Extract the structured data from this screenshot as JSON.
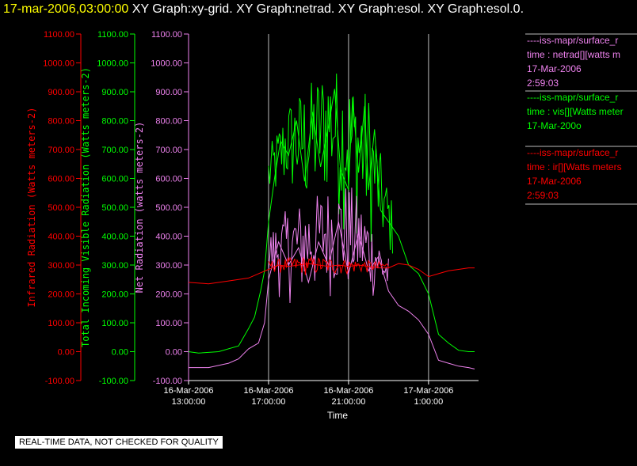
{
  "title": {
    "timestamp": "17-mar-2006,03:00:00",
    "labels": [
      "XY Graph:xy-grid.",
      "XY Graph:netrad.",
      "XY Graph:esol.",
      "XY Graph:esol.0."
    ]
  },
  "notice": "REAL-TIME DATA, NOT CHECKED FOR QUALITY",
  "colors": {
    "ir": "#ff0000",
    "vis": "#00ff00",
    "net": "#ee82ee",
    "grid": "#ffffff",
    "background": "#000000"
  },
  "legend": [
    {
      "source": "----iss-mapr/surface_r",
      "field": "time : netrad[][watts m",
      "date": "17-Mar-2006",
      "time": "2:59:03",
      "color": "#ee82ee"
    },
    {
      "source": "----iss-mapr/surface_r",
      "field": "time : vis[][Watts meter",
      "date": "17-Mar-200o",
      "time": "",
      "color": "#00ff00"
    },
    {
      "source": "----iss-mapr/surface_r",
      "field": "time : ir[][Watts meters",
      "date": "17-Mar-2006",
      "time": "2:59:03",
      "color": "#ff0000"
    }
  ],
  "chart_data": {
    "type": "line",
    "xlabel": "Time",
    "x_ticks": [
      {
        "date": "16-Mar-2006",
        "time": "13:00:00",
        "hour": 13
      },
      {
        "date": "16-Mar-2006",
        "time": "17:00:00",
        "hour": 17
      },
      {
        "date": "16-Mar-2006",
        "time": "21:00:00",
        "hour": 21
      },
      {
        "date": "17-Mar-2006",
        "time": "1:00:00",
        "hour": 25
      }
    ],
    "xlim": [
      13,
      27.5
    ],
    "ylim": [
      -100,
      1100
    ],
    "y_ticks": [
      "-100.00",
      "0.00",
      "100.00",
      "200.00",
      "300.00",
      "400.00",
      "500.00",
      "600.00",
      "700.00",
      "800.00",
      "900.00",
      "1000.00",
      "1100.00"
    ],
    "axes": [
      {
        "label": "Infrared Radiation (Watts meters-2)",
        "color": "#ff0000"
      },
      {
        "label": "Total Incoming Visible Radiation (Watts meters-2)",
        "color": "#00ff00"
      },
      {
        "label": "Net Radiation (watts meters-2)",
        "color": "#ee82ee"
      }
    ],
    "grid": "vertical lines at x ticks",
    "series": [
      {
        "name": "vis",
        "color": "#00ff00",
        "points": [
          [
            13,
            0
          ],
          [
            13.5,
            -5
          ],
          [
            14.5,
            0
          ],
          [
            15.5,
            20
          ],
          [
            16,
            80
          ],
          [
            16.3,
            120
          ],
          [
            16.6,
            210
          ],
          [
            16.8,
            280
          ],
          [
            17,
            450
          ],
          [
            17.3,
            600
          ],
          [
            17.6,
            730
          ],
          [
            18,
            680
          ],
          [
            18.4,
            800
          ],
          [
            18.8,
            590
          ],
          [
            19.2,
            830
          ],
          [
            19.6,
            640
          ],
          [
            20,
            780
          ],
          [
            20.3,
            910
          ],
          [
            20.6,
            630
          ],
          [
            21,
            560
          ],
          [
            21.2,
            880
          ],
          [
            21.5,
            620
          ],
          [
            21.8,
            850
          ],
          [
            22,
            560
          ],
          [
            22.3,
            770
          ],
          [
            22.6,
            490
          ],
          [
            23,
            450
          ],
          [
            23.5,
            400
          ],
          [
            24,
            300
          ],
          [
            24.5,
            270
          ],
          [
            25,
            200
          ],
          [
            25.5,
            60
          ],
          [
            26,
            30
          ],
          [
            26.5,
            5
          ],
          [
            27,
            0
          ],
          [
            27.3,
            0
          ]
        ],
        "envelope": [
          [
            17,
            480,
            700
          ],
          [
            18,
            520,
            870
          ],
          [
            19,
            420,
            930
          ],
          [
            20,
            500,
            1000
          ],
          [
            21,
            380,
            960
          ],
          [
            22,
            360,
            900
          ],
          [
            22.8,
            330,
            620
          ],
          [
            23.2,
            300,
            520
          ]
        ]
      },
      {
        "name": "netrad",
        "color": "#ee82ee",
        "points": [
          [
            13,
            -55
          ],
          [
            14,
            -55
          ],
          [
            15,
            -40
          ],
          [
            15.5,
            -25
          ],
          [
            16,
            10
          ],
          [
            16.5,
            30
          ],
          [
            16.8,
            100
          ],
          [
            17,
            250
          ],
          [
            17.5,
            380
          ],
          [
            18,
            300
          ],
          [
            18.5,
            360
          ],
          [
            19,
            240
          ],
          [
            19.5,
            380
          ],
          [
            20,
            300
          ],
          [
            20.5,
            450
          ],
          [
            21,
            270
          ],
          [
            21.5,
            410
          ],
          [
            22,
            280
          ],
          [
            22.5,
            330
          ],
          [
            23,
            210
          ],
          [
            23.5,
            160
          ],
          [
            24,
            140
          ],
          [
            24.5,
            110
          ],
          [
            25,
            60
          ],
          [
            25.5,
            -30
          ],
          [
            26,
            -40
          ],
          [
            26.5,
            -50
          ],
          [
            27,
            -55
          ],
          [
            27.3,
            -60
          ]
        ],
        "envelope": [
          [
            17,
            200,
            420
          ],
          [
            18,
            160,
            500
          ],
          [
            19,
            150,
            530
          ],
          [
            20,
            180,
            570
          ],
          [
            21,
            170,
            590
          ],
          [
            22,
            170,
            480
          ],
          [
            23,
            170,
            330
          ]
        ]
      },
      {
        "name": "ir",
        "color": "#ff0000",
        "points": [
          [
            13,
            240
          ],
          [
            14,
            235
          ],
          [
            15,
            245
          ],
          [
            16,
            255
          ],
          [
            16.5,
            270
          ],
          [
            17,
            285
          ],
          [
            17.5,
            300
          ],
          [
            18,
            295
          ],
          [
            18.5,
            300
          ],
          [
            19,
            305
          ],
          [
            19.5,
            300
          ],
          [
            20,
            295
          ],
          [
            20.5,
            300
          ],
          [
            21,
            295
          ],
          [
            21.5,
            300
          ],
          [
            22,
            295
          ],
          [
            22.5,
            290
          ],
          [
            23,
            290
          ],
          [
            23.5,
            305
          ],
          [
            24,
            300
          ],
          [
            24.5,
            285
          ],
          [
            25,
            260
          ],
          [
            25.5,
            270
          ],
          [
            26,
            280
          ],
          [
            26.5,
            285
          ],
          [
            27,
            290
          ],
          [
            27.3,
            290
          ]
        ],
        "envelope": [
          [
            17,
            275,
            315
          ],
          [
            18,
            265,
            325
          ],
          [
            19,
            260,
            330
          ],
          [
            20,
            260,
            325
          ],
          [
            21,
            265,
            320
          ],
          [
            22,
            270,
            315
          ],
          [
            23,
            275,
            310
          ]
        ]
      }
    ]
  }
}
